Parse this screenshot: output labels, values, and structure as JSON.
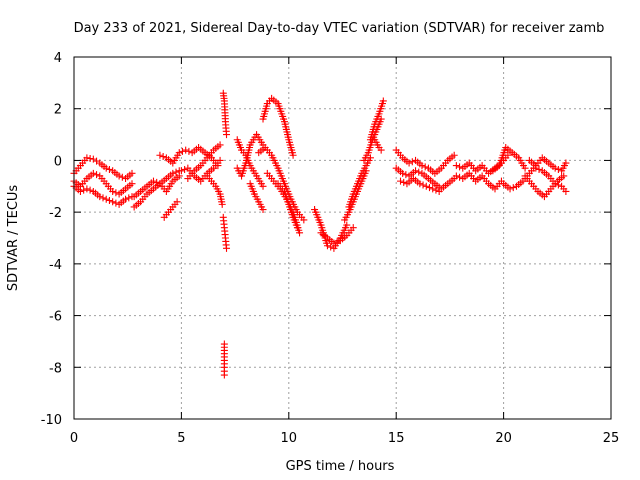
{
  "chart_data": {
    "type": "scatter",
    "title": "Day 233 of 2021, Sidereal Day-to-day VTEC variation (SDTVAR) for receiver zamb",
    "xlabel": "GPS time / hours",
    "ylabel": "SDTVAR / TECUs",
    "xlim": [
      0,
      25
    ],
    "ylim": [
      -10,
      4
    ],
    "x_ticks": [
      0,
      5,
      10,
      15,
      20,
      25
    ],
    "x_tick_labels": [
      "0",
      "5",
      "10",
      "15",
      "20",
      "25"
    ],
    "y_ticks": [
      -10,
      -8,
      -6,
      -4,
      -2,
      0,
      2,
      4
    ],
    "y_tick_labels": [
      "-10",
      "-8",
      "-6",
      "-4",
      "-2",
      "0",
      "2",
      "4"
    ],
    "grid": true,
    "marker": "plus",
    "colors": {
      "series": "#ff0000"
    },
    "series": [
      {
        "name": "SDTVAR",
        "tracks": [
          {
            "x": [
              0.0,
              0.3,
              0.6,
              0.9,
              1.2,
              1.5,
              1.8,
              2.1,
              2.4,
              2.7
            ],
            "y": [
              -0.5,
              -0.2,
              0.1,
              0.05,
              -0.1,
              -0.3,
              -0.4,
              -0.6,
              -0.7,
              -0.5
            ]
          },
          {
            "x": [
              0.0,
              0.3,
              0.6,
              0.9,
              1.2,
              1.5,
              1.8,
              2.1,
              2.4,
              2.7
            ],
            "y": [
              -0.8,
              -1.0,
              -0.7,
              -0.5,
              -0.6,
              -0.9,
              -1.2,
              -1.3,
              -1.1,
              -0.9
            ]
          },
          {
            "x": [
              0.0,
              0.3,
              0.6,
              0.9,
              1.2,
              1.5,
              1.8,
              2.1,
              2.4,
              2.7
            ],
            "y": [
              -1.0,
              -1.2,
              -1.1,
              -1.2,
              -1.4,
              -1.5,
              -1.6,
              -1.7,
              -1.5,
              -1.4
            ]
          },
          {
            "x": [
              2.8,
              3.1,
              3.4,
              3.7,
              4.0,
              4.3,
              4.6,
              4.9
            ],
            "y": [
              -1.8,
              -1.6,
              -1.3,
              -1.1,
              -0.9,
              -1.2,
              -0.8,
              -0.6
            ]
          },
          {
            "x": [
              2.8,
              3.1,
              3.4,
              3.7,
              4.0,
              4.3,
              4.6,
              4.9
            ],
            "y": [
              -1.4,
              -1.2,
              -1.0,
              -0.8,
              -0.9,
              -0.7,
              -0.5,
              -0.4
            ]
          },
          {
            "x": [
              4.2,
              4.4,
              4.6,
              4.8
            ],
            "y": [
              -2.2,
              -2.0,
              -1.8,
              -1.6
            ]
          },
          {
            "x": [
              4.0,
              4.3,
              4.6,
              4.9,
              5.2,
              5.5,
              5.8,
              6.1,
              6.4,
              6.7
            ],
            "y": [
              0.2,
              0.1,
              -0.1,
              0.3,
              0.4,
              0.3,
              0.5,
              0.3,
              0.1,
              -0.2
            ]
          },
          {
            "x": [
              5.0,
              5.3,
              5.6,
              5.9,
              6.2,
              6.5,
              6.8
            ],
            "y": [
              -0.4,
              -0.3,
              -0.6,
              -0.8,
              -0.5,
              -0.3,
              0.0
            ]
          },
          {
            "x": [
              5.3,
              5.6,
              5.9,
              6.2,
              6.5,
              6.8
            ],
            "y": [
              -0.7,
              -0.4,
              -0.2,
              0.1,
              0.4,
              0.6
            ]
          },
          {
            "x": [
              6.2,
              6.4,
              6.6,
              6.8,
              6.9
            ],
            "y": [
              -0.6,
              -0.8,
              -1.0,
              -1.3,
              -1.7
            ]
          },
          {
            "x": [
              6.95,
              7.0,
              7.05,
              7.1
            ],
            "y": [
              2.6,
              2.3,
              1.5,
              1.0
            ]
          },
          {
            "x": [
              6.95,
              7.0,
              7.05,
              7.1
            ],
            "y": [
              -2.2,
              -2.6,
              -3.0,
              -3.4
            ]
          },
          {
            "x": [
              7.0,
              7.0,
              7.0,
              7.0
            ],
            "y": [
              -7.1,
              -7.6,
              -8.0,
              -8.3
            ]
          },
          {
            "x": [
              7.6,
              7.8,
              8.0,
              8.2,
              8.5,
              8.8
            ],
            "y": [
              -0.3,
              -0.6,
              -0.1,
              0.6,
              1.0,
              0.6
            ]
          },
          {
            "x": [
              7.6,
              7.8,
              8.0,
              8.2,
              8.5,
              8.8
            ],
            "y": [
              0.8,
              0.4,
              0.2,
              -0.2,
              -0.6,
              -1.0
            ]
          },
          {
            "x": [
              8.2,
              8.4,
              8.6,
              8.8
            ],
            "y": [
              -0.9,
              -1.3,
              -1.6,
              -1.9
            ]
          },
          {
            "x": [
              8.8,
              9.0,
              9.2,
              9.5,
              9.8,
              10.0,
              10.2
            ],
            "y": [
              1.6,
              2.2,
              2.4,
              2.2,
              1.5,
              0.8,
              0.2
            ]
          },
          {
            "x": [
              8.6,
              8.9,
              9.2,
              9.5,
              9.8,
              10.1,
              10.4,
              10.7
            ],
            "y": [
              0.3,
              0.5,
              0.2,
              -0.3,
              -0.9,
              -1.5,
              -2.0,
              -2.3
            ]
          },
          {
            "x": [
              9.0,
              9.3,
              9.6,
              9.9,
              10.2,
              10.5
            ],
            "y": [
              -0.5,
              -0.8,
              -1.1,
              -1.5,
              -2.0,
              -2.8
            ]
          },
          {
            "x": [
              9.5,
              9.8,
              10.0,
              10.2,
              10.4
            ],
            "y": [
              -0.9,
              -1.2,
              -1.7,
              -2.2,
              -2.6
            ]
          },
          {
            "x": [
              11.2,
              11.5,
              11.8,
              12.1,
              12.4,
              12.7
            ],
            "y": [
              -1.9,
              -2.5,
              -3.3,
              -3.4,
              -3.0,
              -2.5
            ]
          },
          {
            "x": [
              11.5,
              11.8,
              12.1,
              12.4,
              12.7,
              13.0
            ],
            "y": [
              -2.8,
              -3.0,
              -3.2,
              -3.1,
              -2.9,
              -2.6
            ]
          },
          {
            "x": [
              12.6,
              12.8,
              13.0,
              13.2,
              13.4,
              13.6
            ],
            "y": [
              -2.3,
              -2.0,
              -1.6,
              -1.2,
              -0.8,
              -0.4
            ]
          },
          {
            "x": [
              12.8,
              13.0,
              13.2,
              13.4,
              13.6,
              13.8
            ],
            "y": [
              -1.8,
              -1.3,
              -0.9,
              -0.5,
              -0.2,
              0.1
            ]
          },
          {
            "x": [
              13.8,
              14.0,
              14.2,
              14.4
            ],
            "y": [
              0.8,
              1.4,
              1.8,
              2.3
            ]
          },
          {
            "x": [
              13.5,
              13.7,
              13.9,
              14.1,
              14.3
            ],
            "y": [
              0.0,
              0.3,
              0.8,
              1.2,
              1.6
            ]
          },
          {
            "x": [
              14.0,
              14.2,
              14.3
            ],
            "y": [
              0.8,
              0.5,
              0.4
            ]
          },
          {
            "x": [
              15.0,
              15.3,
              15.6,
              15.9,
              16.2,
              16.5,
              16.8,
              17.1,
              17.4,
              17.7
            ],
            "y": [
              0.4,
              0.1,
              -0.1,
              0.0,
              -0.2,
              -0.3,
              -0.5,
              -0.3,
              0.0,
              0.2
            ]
          },
          {
            "x": [
              15.0,
              15.3,
              15.6,
              15.9,
              16.2,
              16.5,
              16.8,
              17.1,
              17.4,
              17.7
            ],
            "y": [
              -0.3,
              -0.5,
              -0.6,
              -0.4,
              -0.5,
              -0.7,
              -0.9,
              -1.1,
              -0.9,
              -0.7
            ]
          },
          {
            "x": [
              15.2,
              15.5,
              15.8,
              16.1,
              16.4,
              16.7,
              17.0
            ],
            "y": [
              -0.8,
              -0.9,
              -0.7,
              -0.9,
              -1.0,
              -1.1,
              -1.2
            ]
          },
          {
            "x": [
              17.8,
              18.1,
              18.4,
              18.7,
              19.0,
              19.3,
              19.6,
              19.9,
              20.2
            ],
            "y": [
              -0.2,
              -0.3,
              -0.1,
              -0.4,
              -0.2,
              -0.5,
              -0.3,
              -0.1,
              0.2
            ]
          },
          {
            "x": [
              17.8,
              18.1,
              18.4,
              18.7,
              19.0,
              19.3,
              19.6,
              19.9
            ],
            "y": [
              -0.6,
              -0.7,
              -0.5,
              -0.8,
              -0.6,
              -0.9,
              -1.1,
              -0.8
            ]
          },
          {
            "x": [
              19.5,
              19.8,
              20.1,
              20.4,
              20.7,
              21.0
            ],
            "y": [
              -0.4,
              -0.2,
              0.5,
              0.3,
              0.1,
              -0.3
            ]
          },
          {
            "x": [
              20.0,
              20.3,
              20.6,
              20.9,
              21.2,
              21.5
            ],
            "y": [
              -0.9,
              -1.1,
              -1.0,
              -0.8,
              -0.5,
              -0.2
            ]
          },
          {
            "x": [
              21.0,
              21.3,
              21.6,
              21.9,
              22.2,
              22.5,
              22.8
            ],
            "y": [
              -0.6,
              -0.9,
              -1.2,
              -1.4,
              -1.1,
              -0.8,
              -0.6
            ]
          },
          {
            "x": [
              21.2,
              21.5,
              21.8,
              22.1,
              22.4,
              22.7,
              22.9
            ],
            "y": [
              0.0,
              -0.2,
              0.1,
              -0.1,
              -0.3,
              -0.4,
              -0.1
            ]
          },
          {
            "x": [
              21.5,
              21.8,
              22.1,
              22.4,
              22.7,
              22.9
            ],
            "y": [
              -0.3,
              -0.4,
              -0.6,
              -0.9,
              -1.0,
              -1.2
            ]
          }
        ]
      }
    ]
  }
}
